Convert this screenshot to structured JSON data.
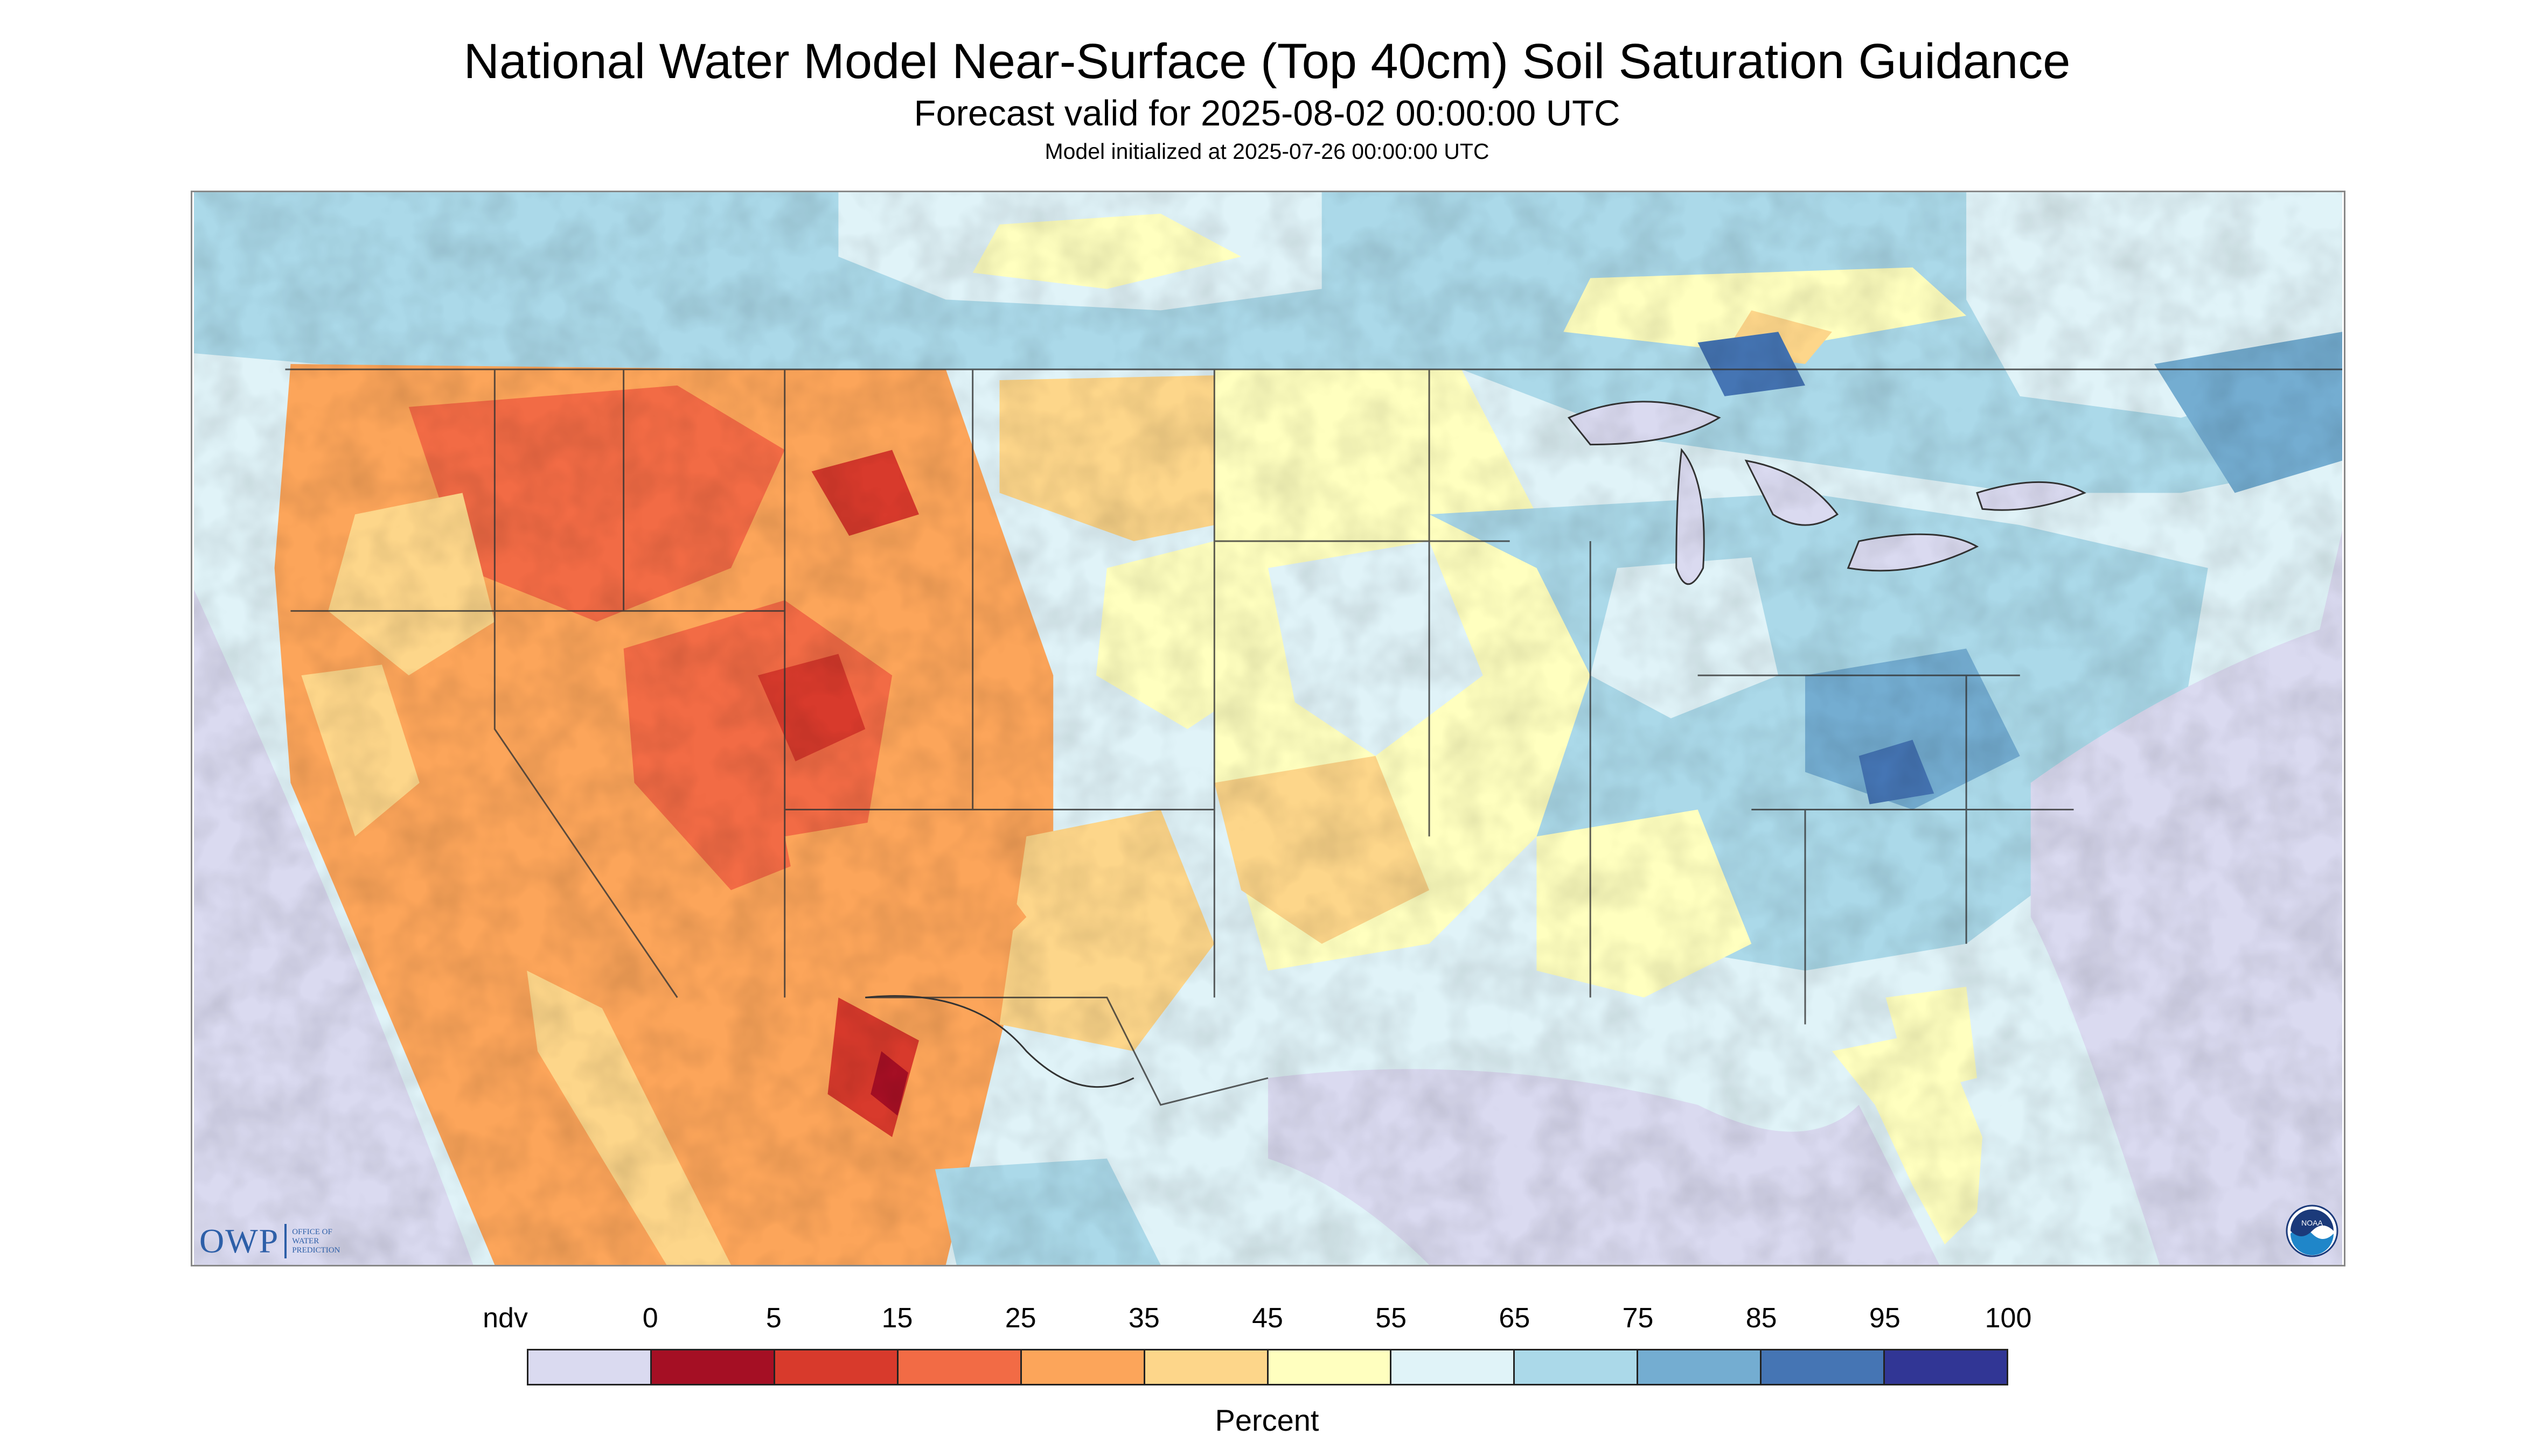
{
  "title": "National Water Model Near-Surface (Top 40cm) Soil Saturation Guidance",
  "subtitle": "Forecast valid for 2025-08-02 00:00:00 UTC",
  "init_text": "Model initialized at 2025-07-26 00:00:00 UTC",
  "legend": {
    "labels": [
      "ndv",
      "0",
      "5",
      "15",
      "25",
      "35",
      "45",
      "55",
      "65",
      "75",
      "85",
      "95",
      "100"
    ],
    "colors": [
      "#dadaf0",
      "#a50f24",
      "#d83a2c",
      "#f26b45",
      "#fca55a",
      "#fdd68a",
      "#ffffbf",
      "#e0f3f8",
      "#abd9e9",
      "#74add1",
      "#4575b4",
      "#313695"
    ],
    "unit": "Percent"
  },
  "logos": {
    "owp_big": "OWP",
    "owp_small": [
      "OFFICE OF",
      "WATER",
      "PREDICTION"
    ],
    "noaa": "NOAA"
  },
  "map": {
    "no_data_color": "#dadaf0",
    "water_color": "#dadaf0",
    "boundary_color": "#333333"
  }
}
